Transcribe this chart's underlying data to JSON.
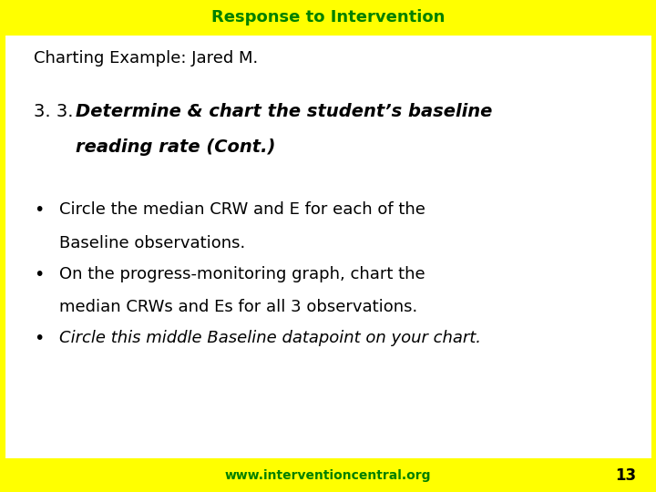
{
  "title_bar_text": "Response to Intervention",
  "title_bar_color": "#FFFF00",
  "title_bar_text_color": "#008000",
  "subtitle_text": "Charting Example: Jared M.",
  "subtitle_color": "#000000",
  "heading_prefix": "3. 3.  ",
  "heading_line1": "Determine & chart the student’s baseline",
  "heading_line2": "reading rate (Cont.)",
  "heading_color": "#000000",
  "bullet1_lines": [
    "Circle the median CRW and E for each of the",
    "Baseline observations."
  ],
  "bullet1_style": "normal",
  "bullet2_lines": [
    "On the progress-monitoring graph, chart the",
    "median CRWs and Es for all 3 observations."
  ],
  "bullet2_style": "normal",
  "bullet3_lines": [
    "Circle this middle Baseline datapoint on your chart."
  ],
  "bullet3_style": "italic",
  "footer_text": "www.interventioncentral.org",
  "footer_color": "#008000",
  "footer_bg": "#FFFF00",
  "page_number": "13",
  "page_number_color": "#000000",
  "bg_color": "#FFFFFF",
  "border_color": "#FFFF00",
  "border_width": 8
}
